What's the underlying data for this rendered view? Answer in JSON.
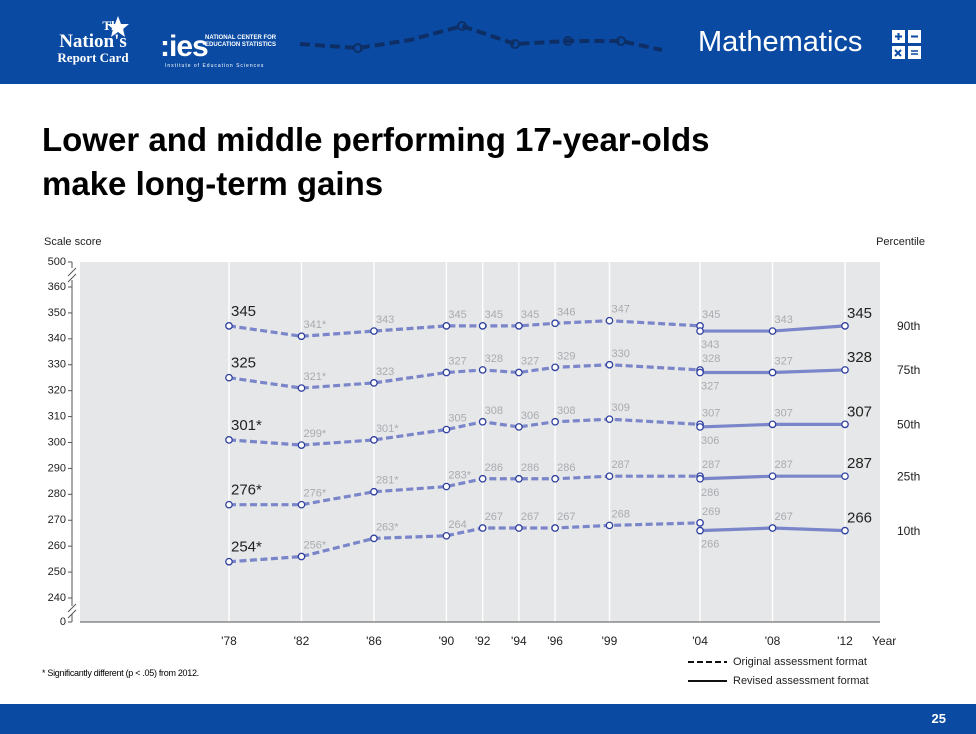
{
  "header": {
    "brand_line1": "The",
    "brand_line2": "Nation's",
    "brand_line3": "Report Card",
    "ies_logo": ":ies",
    "ies_subtitle": "NATIONAL CENTER FOR EDUCATION STATISTICS",
    "ies_tagline": "Institute of Education Sciences",
    "subject": "Mathematics",
    "subject_icon": "math-operators-icon"
  },
  "title": [
    "Lower and middle performing 17-year-olds",
    "make long-term gains"
  ],
  "footnote": "* Significantly different (p < .05) from 2012.",
  "page_number": "25",
  "colors": {
    "header_bg": "#0a4aa2",
    "plot_bg": "#e6e7e8",
    "line": "#7a86c9",
    "marker_fill": "#ffffff",
    "marker_stroke": "#2e3f9e",
    "label_dark": "#222222",
    "label_light": "#a9abb0"
  },
  "chart_data": {
    "type": "line",
    "ylabel": "Scale score",
    "xlabel": "Year",
    "right_label": "Percentile",
    "y_break": true,
    "y_ticks": [
      0,
      240,
      250,
      260,
      270,
      280,
      290,
      300,
      310,
      320,
      330,
      340,
      350,
      360,
      500
    ],
    "ylim": [
      240,
      360
    ],
    "x_ticks": [
      "'78",
      "'82",
      "'86",
      "'90",
      "'92",
      "'94",
      "'96",
      "'99",
      "'04",
      "'08",
      "'12"
    ],
    "x_years": [
      1978,
      1982,
      1986,
      1990,
      1992,
      1994,
      1996,
      1999,
      2004,
      2008,
      2012
    ],
    "legend": {
      "dashed": "Original assessment format",
      "solid": "Revised assessment format"
    },
    "series": [
      {
        "name": "90th",
        "original": {
          "years": [
            1978,
            1982,
            1986,
            1990,
            1992,
            1994,
            1996,
            1999,
            2004
          ],
          "values": [
            345,
            341,
            343,
            345,
            345,
            345,
            346,
            347,
            345
          ],
          "labels": [
            "345",
            "341*",
            "343",
            "345",
            "345",
            "345",
            "346",
            "347",
            "345"
          ]
        },
        "revised": {
          "years": [
            2004,
            2008,
            2012
          ],
          "values": [
            343,
            343,
            345
          ],
          "labels": [
            "343",
            "343",
            "345"
          ]
        }
      },
      {
        "name": "75th",
        "original": {
          "years": [
            1978,
            1982,
            1986,
            1990,
            1992,
            1994,
            1996,
            1999,
            2004
          ],
          "values": [
            325,
            321,
            323,
            327,
            328,
            327,
            329,
            330,
            328
          ],
          "labels": [
            "325",
            "321*",
            "323",
            "327",
            "328",
            "327",
            "329",
            "330",
            "328"
          ]
        },
        "revised": {
          "years": [
            2004,
            2008,
            2012
          ],
          "values": [
            327,
            327,
            328
          ],
          "labels": [
            "327",
            "327",
            "328"
          ]
        }
      },
      {
        "name": "50th",
        "original": {
          "years": [
            1978,
            1982,
            1986,
            1990,
            1992,
            1994,
            1996,
            1999,
            2004
          ],
          "values": [
            301,
            299,
            301,
            305,
            308,
            306,
            308,
            309,
            307
          ],
          "labels": [
            "301*",
            "299*",
            "301*",
            "305",
            "308",
            "306",
            "308",
            "309",
            "307"
          ]
        },
        "revised": {
          "years": [
            2004,
            2008,
            2012
          ],
          "values": [
            306,
            307,
            307
          ],
          "labels": [
            "306",
            "307",
            "307"
          ]
        }
      },
      {
        "name": "25th",
        "original": {
          "years": [
            1978,
            1982,
            1986,
            1990,
            1992,
            1994,
            1996,
            1999,
            2004
          ],
          "values": [
            276,
            276,
            281,
            283,
            286,
            286,
            286,
            287,
            287
          ],
          "labels": [
            "276*",
            "276*",
            "281*",
            "283*",
            "286",
            "286",
            "286",
            "287",
            "287"
          ]
        },
        "revised": {
          "years": [
            2004,
            2008,
            2012
          ],
          "values": [
            286,
            287,
            287
          ],
          "labels": [
            "286",
            "287",
            "287"
          ]
        }
      },
      {
        "name": "10th",
        "original": {
          "years": [
            1978,
            1982,
            1986,
            1990,
            1992,
            1994,
            1996,
            1999,
            2004
          ],
          "values": [
            254,
            256,
            263,
            264,
            267,
            267,
            267,
            268,
            269
          ],
          "labels": [
            "254*",
            "256*",
            "263*",
            "264",
            "267",
            "267",
            "267",
            "268",
            "269"
          ]
        },
        "revised": {
          "years": [
            2004,
            2008,
            2012
          ],
          "values": [
            266,
            267,
            266
          ],
          "labels": [
            "266",
            "267",
            "266"
          ]
        }
      }
    ]
  }
}
